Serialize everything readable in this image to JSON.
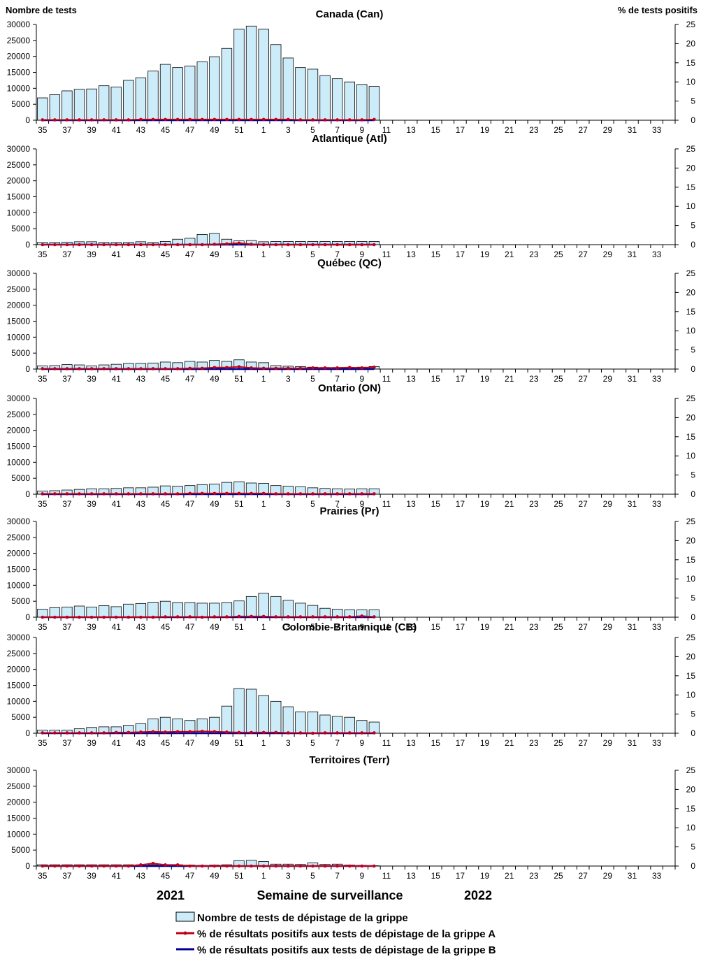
{
  "header": {
    "left_axis_title": "Nombre de tests",
    "right_axis_title": "% de tests positifs"
  },
  "footer": {
    "year_left": "2021",
    "xlabel": "Semaine de surveillance",
    "year_right": "2022"
  },
  "legend": {
    "tests": "Nombre de tests de dépistage de la grippe",
    "flu_a": "% de résultats positifs aux tests de dépistage de la grippe A",
    "flu_b": "% de résultats positifs aux tests de dépistage de la grippe B"
  },
  "colors": {
    "bar_fill": "#CCECFA",
    "bar_stroke": "#000000",
    "flu_a": "#C0001A",
    "flu_b": "#000099"
  },
  "chart_data": {
    "type": "bar",
    "weeks": [
      35,
      36,
      37,
      38,
      39,
      40,
      41,
      42,
      43,
      44,
      45,
      46,
      47,
      48,
      49,
      50,
      51,
      52,
      1,
      2,
      3,
      4,
      5,
      6,
      7,
      8,
      9,
      10,
      11,
      12,
      13,
      14,
      15,
      16,
      17,
      18,
      19,
      20,
      21,
      22,
      23,
      24,
      25,
      26,
      27,
      28,
      29,
      30,
      31,
      32,
      33,
      34
    ],
    "tick_labels": [
      "35",
      "37",
      "39",
      "41",
      "43",
      "45",
      "47",
      "49",
      "51",
      "1",
      "3",
      "5",
      "7",
      "9",
      "11",
      "13",
      "15",
      "17",
      "19",
      "21",
      "23",
      "25",
      "27",
      "29",
      "31",
      "33"
    ],
    "ylim_left": [
      0,
      30000
    ],
    "yticks_left": [
      0,
      5000,
      10000,
      15000,
      20000,
      25000,
      30000
    ],
    "ylim_right": [
      0,
      25
    ],
    "yticks_right": [
      0,
      5,
      10,
      15,
      20,
      25
    ],
    "panels": [
      {
        "title": "Canada (Can)",
        "tests": [
          7000,
          8000,
          9200,
          9700,
          9800,
          10800,
          10400,
          12500,
          13300,
          15400,
          17500,
          16500,
          17000,
          18300,
          19900,
          22500,
          28500,
          29500,
          28500,
          23700,
          19500,
          16500,
          16000,
          14000,
          13000,
          12000,
          11200,
          10600
        ],
        "flu_a": [
          0.1,
          0.1,
          0.1,
          0.1,
          0.1,
          0.1,
          0.1,
          0.1,
          0.2,
          0.2,
          0.2,
          0.2,
          0.2,
          0.2,
          0.2,
          0.2,
          0.2,
          0.2,
          0.2,
          0.2,
          0.2,
          0.1,
          0.1,
          0.1,
          0.1,
          0.1,
          0.1,
          0.2
        ],
        "flu_b": [
          0,
          0,
          0,
          0,
          0,
          0,
          0,
          0,
          0,
          0,
          0,
          0,
          0,
          0,
          0,
          0,
          0,
          0,
          0,
          0,
          0,
          0,
          0,
          0,
          0,
          0,
          0,
          0
        ]
      },
      {
        "title": "Atlantique (Atl)",
        "tests": [
          700,
          700,
          800,
          900,
          900,
          700,
          700,
          700,
          900,
          700,
          1000,
          1700,
          2000,
          3200,
          3500,
          1700,
          1200,
          1300,
          900,
          1000,
          1000,
          1000,
          1000,
          1000,
          1000,
          1000,
          1000,
          1000
        ],
        "flu_a": [
          0,
          0,
          0,
          0,
          0,
          0,
          0,
          0,
          0,
          0,
          0,
          0,
          0,
          0,
          0.1,
          0.2,
          0.4,
          0.1,
          0,
          0,
          0,
          0,
          0,
          0,
          0,
          0,
          0,
          0
        ],
        "flu_b": [
          0,
          0,
          0,
          0,
          0,
          0,
          0,
          0,
          0,
          0,
          0,
          0,
          0,
          0,
          0,
          0,
          0,
          0,
          0,
          0,
          0,
          0,
          0,
          0,
          0,
          0,
          0,
          0
        ]
      },
      {
        "title": "Québec (QC)",
        "tests": [
          1000,
          1100,
          1400,
          1300,
          1000,
          1300,
          1500,
          1800,
          1800,
          1900,
          2200,
          2000,
          2400,
          2200,
          2700,
          2400,
          2900,
          2200,
          2000,
          1100,
          900,
          800,
          600,
          500,
          500,
          500,
          600,
          800
        ],
        "flu_a": [
          0.1,
          0.1,
          0.1,
          0.1,
          0.1,
          0.1,
          0.1,
          0.1,
          0.1,
          0.1,
          0.1,
          0.1,
          0.2,
          0.2,
          0.4,
          0.4,
          0.6,
          0.3,
          0.2,
          0.2,
          0.2,
          0.2,
          0.3,
          0.3,
          0.3,
          0.4,
          0.3,
          0.5
        ],
        "flu_b": [
          0,
          0,
          0,
          0,
          0,
          0,
          0,
          0,
          0,
          0,
          0,
          0,
          0,
          0,
          0,
          0,
          0,
          0,
          0,
          0,
          0,
          0,
          0,
          0,
          0,
          0,
          0,
          0
        ]
      },
      {
        "title": "Ontario (ON)",
        "tests": [
          1000,
          1100,
          1300,
          1500,
          1700,
          1700,
          1800,
          2000,
          2000,
          2200,
          2600,
          2500,
          2700,
          3000,
          3200,
          3700,
          3900,
          3500,
          3400,
          2700,
          2500,
          2300,
          2000,
          1800,
          1700,
          1600,
          1700,
          1700
        ],
        "flu_a": [
          0.1,
          0.1,
          0.1,
          0.1,
          0.1,
          0.1,
          0.1,
          0.1,
          0.1,
          0.1,
          0.1,
          0.1,
          0.2,
          0.2,
          0.2,
          0.2,
          0.2,
          0.2,
          0.2,
          0.1,
          0.1,
          0.1,
          0.1,
          0.1,
          0.1,
          0.1,
          0.1,
          0.1
        ],
        "flu_b": [
          0,
          0,
          0,
          0,
          0,
          0,
          0,
          0,
          0,
          0,
          0,
          0,
          0,
          0,
          0,
          0,
          0,
          0,
          0,
          0,
          0,
          0,
          0,
          0,
          0,
          0,
          0,
          0
        ]
      },
      {
        "title": "Prairies (Pr)",
        "tests": [
          2500,
          3000,
          3200,
          3500,
          3200,
          3600,
          3300,
          4100,
          4300,
          4700,
          5000,
          4600,
          4600,
          4400,
          4400,
          4600,
          5100,
          6500,
          7500,
          6500,
          5300,
          4400,
          3700,
          2800,
          2500,
          2300,
          2300,
          2300
        ],
        "flu_a": [
          0,
          0,
          0,
          0,
          0,
          0,
          0,
          0,
          0,
          0,
          0.1,
          0.1,
          0.1,
          0,
          0.1,
          0.1,
          0.2,
          0.2,
          0.2,
          0.1,
          0.1,
          0.1,
          0.1,
          0.1,
          0.1,
          0.1,
          0.3,
          0.1
        ],
        "flu_b": [
          0,
          0,
          0,
          0,
          0,
          0,
          0,
          0,
          0,
          0,
          0,
          0,
          0,
          0,
          0,
          0,
          0,
          0,
          0,
          0,
          0,
          0,
          0,
          0,
          0,
          0,
          0,
          0
        ]
      },
      {
        "title": "Colombie-Britannique (CB)",
        "tests": [
          1000,
          1000,
          1000,
          1400,
          1800,
          2000,
          2000,
          2500,
          3000,
          4500,
          5000,
          4500,
          4000,
          4500,
          5000,
          8500,
          14000,
          13800,
          11800,
          10000,
          8300,
          6700,
          6700,
          5700,
          5300,
          5000,
          4000,
          3500
        ],
        "flu_a": [
          0.1,
          0.1,
          0.1,
          0.1,
          0.1,
          0.1,
          0.2,
          0.2,
          0.3,
          0.4,
          0.3,
          0.4,
          0.4,
          0.5,
          0.4,
          0.3,
          0.2,
          0.2,
          0.2,
          0.2,
          0.1,
          0.1,
          0,
          0.1,
          0.1,
          0.1,
          0.1,
          0.1
        ],
        "flu_b": [
          0,
          0,
          0,
          0,
          0,
          0,
          0,
          0,
          0,
          0,
          0,
          0,
          0,
          0,
          0,
          0,
          0,
          0,
          0,
          0,
          0,
          0,
          0,
          0,
          0,
          0,
          0,
          0
        ]
      },
      {
        "title": "Territoires (Terr)",
        "tests": [
          400,
          400,
          400,
          400,
          400,
          400,
          400,
          400,
          400,
          400,
          400,
          400,
          300,
          200,
          300,
          400,
          1700,
          1800,
          1400,
          600,
          600,
          500,
          1000,
          500,
          600,
          300,
          200,
          100
        ],
        "flu_a": [
          0,
          0,
          0,
          0,
          0,
          0,
          0,
          0,
          0.3,
          0.7,
          0.3,
          0.3,
          0,
          0,
          0,
          0,
          0,
          0,
          0,
          0,
          0,
          0,
          0,
          0,
          0,
          0,
          0,
          0
        ],
        "flu_b": [
          0,
          0,
          0,
          0,
          0,
          0,
          0,
          0,
          0,
          0,
          0,
          0,
          0,
          0,
          0,
          0,
          0,
          0,
          0,
          0,
          0,
          0,
          0,
          0,
          0,
          0,
          0,
          0
        ]
      }
    ]
  }
}
